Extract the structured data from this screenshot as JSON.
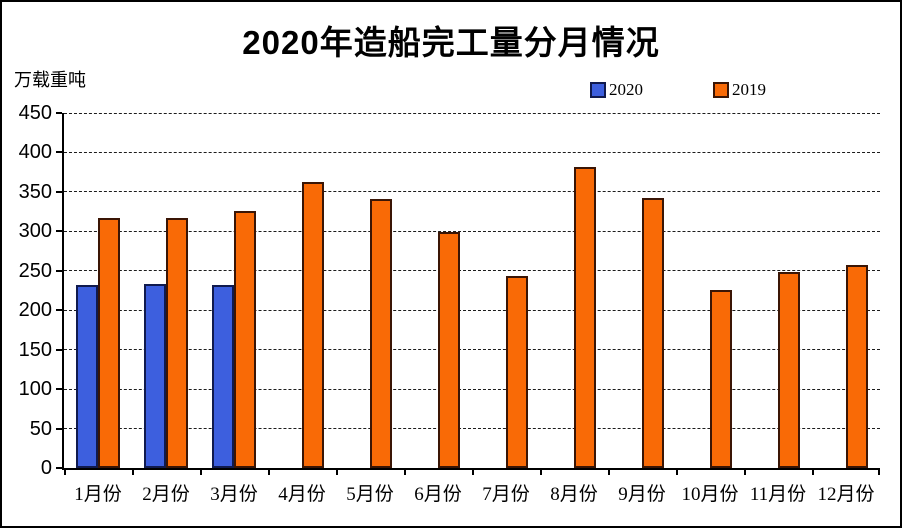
{
  "chart": {
    "title": "2020年造船完工量分月情况",
    "unit_label": "万载重吨"
  },
  "chart_data": {
    "type": "bar",
    "title": "2020年造船完工量分月情况",
    "xlabel": "",
    "ylabel": "万载重吨",
    "categories": [
      "1月份",
      "2月份",
      "3月份",
      "4月份",
      "5月份",
      "6月份",
      "7月份",
      "8月份",
      "9月份",
      "10月份",
      "11月份",
      "12月份"
    ],
    "series": [
      {
        "name": "2020",
        "color": "#3D5FDE",
        "border_color": "#101A4E",
        "values": [
          232,
          233,
          232,
          null,
          null,
          null,
          null,
          null,
          null,
          null,
          null,
          null
        ]
      },
      {
        "name": "2019",
        "color": "#F96A06",
        "border_color": "#3A1505",
        "values": [
          317,
          317,
          326,
          362,
          341,
          299,
          244,
          382,
          342,
          226,
          249,
          257
        ]
      }
    ],
    "ylim": [
      0,
      450
    ],
    "ytick_step": 50,
    "yticks": [
      0,
      50,
      100,
      150,
      200,
      250,
      300,
      350,
      400,
      450
    ],
    "grid": "horizontal-dashed",
    "legend_position": "top-center",
    "axis_color": "#000000",
    "background_color": "#ffffff"
  }
}
